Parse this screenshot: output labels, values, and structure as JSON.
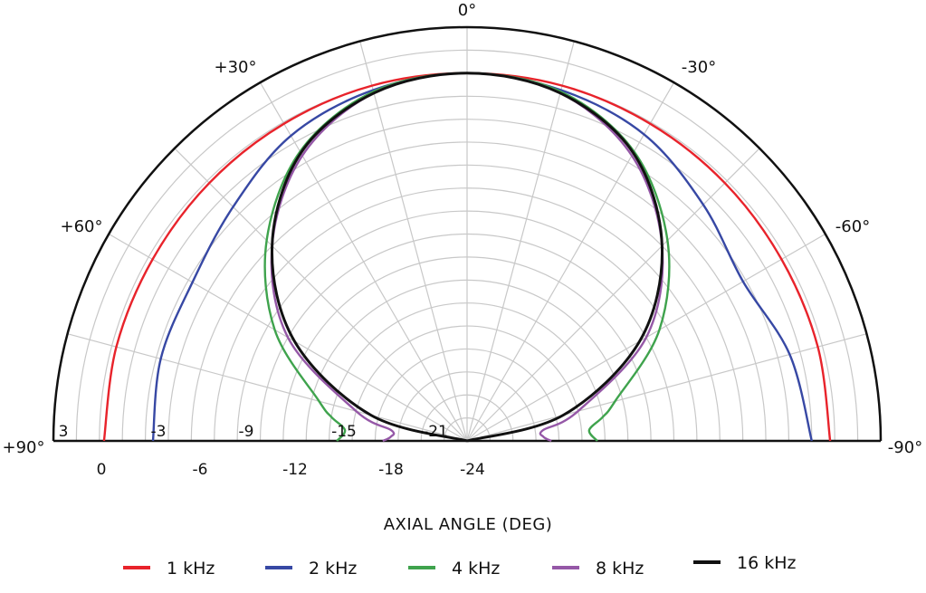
{
  "chart_data": {
    "type": "polar",
    "xlabel": "AXIAL ANGLE (DEG)",
    "angle_ticks": [
      {
        "deg": 0,
        "label": "0°"
      },
      {
        "deg": 30,
        "label": "+30°"
      },
      {
        "deg": -30,
        "label": "-30°"
      },
      {
        "deg": 60,
        "label": "+60°"
      },
      {
        "deg": -60,
        "label": "-60°"
      },
      {
        "deg": 90,
        "label": "+90°"
      },
      {
        "deg": -90,
        "label": "-90°"
      }
    ],
    "r_range_db": [
      -24,
      3
    ],
    "r_ticks_left": [
      "3",
      "-3",
      "-9",
      "-15",
      "-21"
    ],
    "r_ticks_bottom": [
      "0",
      "-6",
      "-12",
      "-18",
      "-24"
    ],
    "grid": true,
    "legend_position": "bottom",
    "series": [
      {
        "name": "1 kHz",
        "color": "#e8232b",
        "angles": [
          0,
          15,
          30,
          45,
          60,
          75,
          90,
          -15,
          -30,
          -45,
          -60,
          -75,
          -90
        ],
        "values": [
          0,
          0,
          -0.1,
          -0.2,
          -0.3,
          -0.3,
          -0.3,
          0,
          -0.1,
          -0.2,
          -0.3,
          -0.3,
          -0.3
        ]
      },
      {
        "name": "2 kHz",
        "color": "#3748a4",
        "angles": [
          0,
          15,
          30,
          45,
          60,
          75,
          90,
          -15,
          -30,
          -45,
          -60,
          -75,
          -90
        ],
        "values": [
          0,
          -0.3,
          -1,
          -2.4,
          -3.3,
          -3.3,
          -3.5,
          -0.3,
          -0.9,
          -2.2,
          -3.2,
          -2.2,
          -1.5
        ]
      },
      {
        "name": "4 kHz",
        "color": "#3fa34d",
        "angles": [
          0,
          15,
          30,
          45,
          60,
          75,
          80,
          85,
          90,
          -15,
          -30,
          -45,
          -60,
          -75,
          -80,
          -85,
          -90
        ],
        "values": [
          0,
          -0.4,
          -2.2,
          -5.5,
          -9.5,
          -14,
          -15,
          -16,
          -15.5,
          -0.4,
          -2.2,
          -5.5,
          -9.5,
          -14,
          -15,
          -16,
          -15.5
        ]
      },
      {
        "name": "8 kHz",
        "color": "#9558a7",
        "angles": [
          0,
          15,
          30,
          45,
          60,
          75,
          82,
          87,
          90,
          -15,
          -30,
          -45,
          -60,
          -75,
          -82,
          -87,
          -90
        ],
        "values": [
          0,
          -0.5,
          -2.5,
          -6,
          -10.5,
          -16.5,
          -19,
          -19,
          -18.5,
          -0.5,
          -2.5,
          -6,
          -10.5,
          -16.5,
          -19,
          -19,
          -18.5
        ]
      },
      {
        "name": "16 kHz",
        "color": "#111111",
        "angles": [
          0,
          15,
          30,
          45,
          60,
          75,
          90,
          -15,
          -30,
          -45,
          -60,
          -75,
          -90
        ],
        "values": [
          0,
          -0.5,
          -2.3,
          -6,
          -11,
          -17.5,
          -24,
          -0.5,
          -2.3,
          -6,
          -11,
          -17.5,
          -24
        ]
      }
    ]
  }
}
